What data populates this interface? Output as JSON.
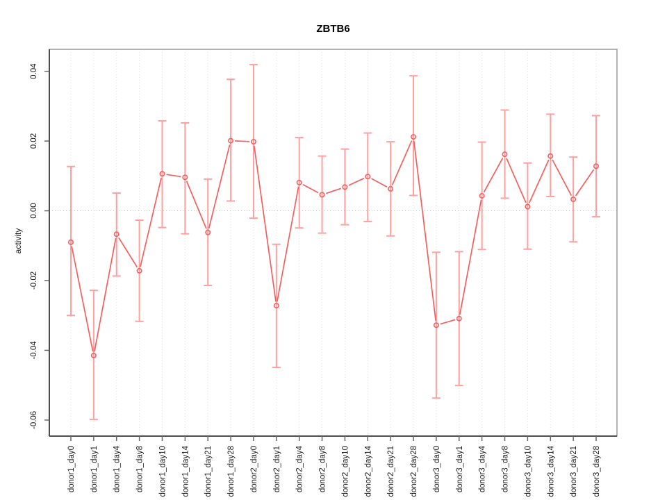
{
  "title": "ZBTB6",
  "chart_data": {
    "type": "scatter",
    "title": "ZBTB6",
    "xlabel": "",
    "ylabel": "activity",
    "legend": "none",
    "grid": "vertical dotted gridline at every category; horizontal dotted line at y=0 only",
    "marker": "open-circle",
    "line_between_points": true,
    "error_bars": true,
    "ylim": [
      -0.0646,
      0.0463
    ],
    "yticks": [
      0.04,
      0.02,
      0.0,
      -0.02,
      -0.04,
      -0.06
    ],
    "ytick_labels": [
      "0.04",
      "0.02",
      "0.00",
      "-0.02",
      "-0.04",
      "-0.06"
    ],
    "categories": [
      "donor1_day0",
      "donor1_day1",
      "donor1_day4",
      "donor1_day8",
      "donor1_day10",
      "donor1_day14",
      "donor1_day21",
      "donor1_day28",
      "donor2_day0",
      "donor2_day1",
      "donor2_day4",
      "donor2_day8",
      "donor2_day10",
      "donor2_day14",
      "donor2_day21",
      "donor2_day28",
      "donor3_day0",
      "donor3_day1",
      "donor3_day4",
      "donor3_day8",
      "donor3_day10",
      "donor3_day14",
      "donor3_day21",
      "donor3_day28"
    ],
    "series": [
      {
        "name": "activity",
        "values": [
          -0.009,
          -0.0415,
          -0.0067,
          -0.0172,
          0.0106,
          0.0096,
          -0.0062,
          0.0201,
          0.0198,
          -0.0272,
          0.0081,
          0.0046,
          0.0068,
          0.0098,
          0.0063,
          0.0212,
          -0.0328,
          -0.0309,
          0.0043,
          0.0162,
          0.0012,
          0.0157,
          0.0033,
          0.0128
        ],
        "lower": [
          -0.03,
          -0.0598,
          -0.0187,
          -0.0317,
          -0.0048,
          -0.0066,
          -0.0214,
          0.0028,
          -0.0021,
          -0.0449,
          -0.0049,
          -0.0064,
          -0.004,
          -0.0031,
          -0.0072,
          0.0044,
          -0.0537,
          -0.0501,
          -0.0111,
          0.0036,
          -0.011,
          0.0041,
          -0.0089,
          -0.0017
        ],
        "upper": [
          0.0127,
          -0.0228,
          0.0051,
          -0.0027,
          0.0258,
          0.0252,
          0.0091,
          0.0377,
          0.0419,
          -0.0096,
          0.021,
          0.0157,
          0.0177,
          0.0223,
          0.0198,
          0.0387,
          -0.0119,
          -0.0117,
          0.0197,
          0.0289,
          0.0137,
          0.0277,
          0.0154,
          0.0273
        ]
      }
    ],
    "colors": {
      "point_line": "#f25f5f",
      "error_bar": "#ffa0a0",
      "grid_line": "#dcdcdc",
      "zero_line": "#c9c9c9",
      "box_border": "#9a9a9a",
      "axis_line": "#4d4d4d",
      "tick_mark": "#666666",
      "tick_text": "#1a1a1a"
    }
  }
}
